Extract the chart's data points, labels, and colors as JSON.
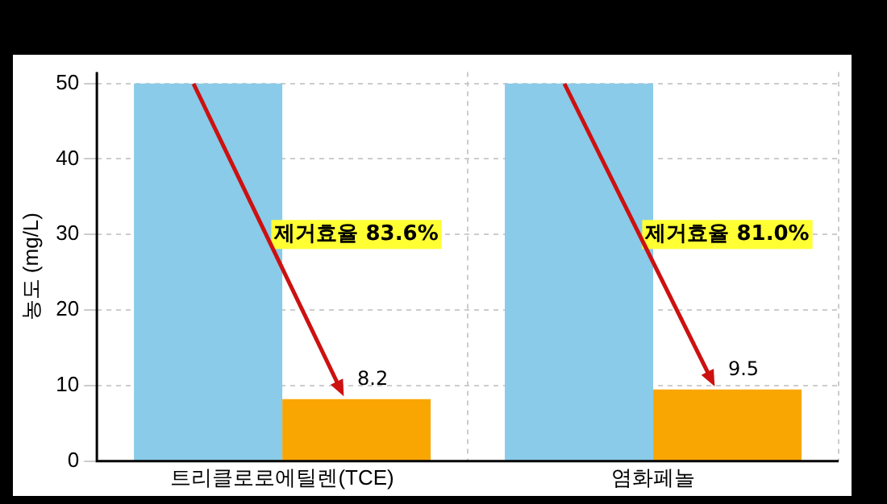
{
  "chart_data": {
    "type": "bar",
    "ylabel": "농도 (mg/L)",
    "categories": [
      "트리클로로에틸렌(TCE)",
      "염화페놀"
    ],
    "series": [
      {
        "color": "#89cbe8",
        "values": [
          50,
          50
        ]
      },
      {
        "color": "#f9a602",
        "values": [
          8.2,
          9.5
        ],
        "value_labels": [
          "8.2",
          "9.5"
        ]
      }
    ],
    "ylim": [
      0,
      51.5
    ],
    "yticks": [
      0,
      10,
      20,
      30,
      40,
      50
    ],
    "grid": true,
    "line_style": "dashed",
    "annotations": [
      {
        "text": "제거효율 83.6%",
        "x": "트리클로로에틸렌(TCE)",
        "y": 30
      },
      {
        "text": "제거효율 81.0%",
        "x": "염화페놀",
        "y": 30
      }
    ]
  }
}
